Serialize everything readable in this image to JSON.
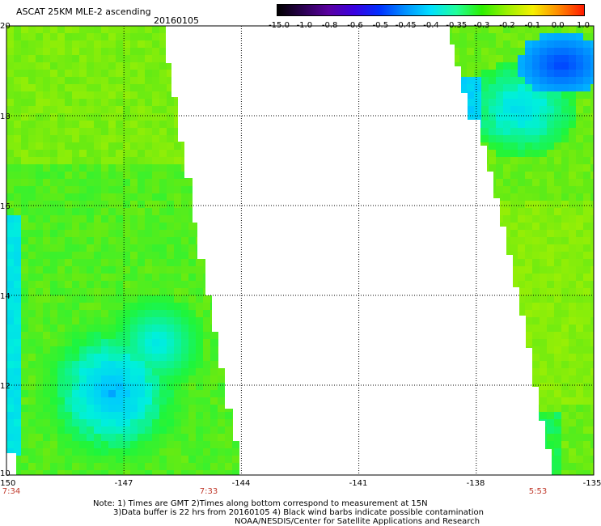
{
  "title": "ASCAT 25KM MLE-2 ascending",
  "date": "20160105",
  "colorbar": {
    "labels": [
      "-15.0",
      "-1.0",
      "-0.8",
      "-0.6",
      "-0.5",
      "-0.45",
      "-0.4",
      "-0.35",
      "-0.3",
      "-0.2",
      "-0.1",
      "0.0",
      "1.0"
    ],
    "colors": [
      "#000000",
      "#2a0050",
      "#5a00a0",
      "#3a00e0",
      "#0030ff",
      "#0090ff",
      "#00e0ff",
      "#20ff9a",
      "#2cef00",
      "#9cf000",
      "#f6f000",
      "#ff8a00",
      "#ff1a00"
    ]
  },
  "map": {
    "lat_labels": [
      "20",
      "18",
      "16",
      "14",
      "12",
      "10"
    ],
    "lon_labels": [
      "-150",
      "-147",
      "-144",
      "-141",
      "-138",
      "-135"
    ],
    "time_labels": [
      "7:34",
      "7:33",
      "5:53"
    ],
    "grid_lats": [
      18,
      16,
      14,
      12
    ],
    "grid_lons": [
      -147,
      -144,
      -141,
      -138
    ],
    "extent": {
      "lon_min": -150,
      "lon_max": -135,
      "lat_min": 10,
      "lat_max": 20
    }
  },
  "notes": [
    "Note: 1) Times are GMT 2)Times along bottom correspond to measurement at 15N",
    "3)Data buffer is 22 hrs from 20160105 4) Black wind barbs indicate possible contamination",
    "NOAA/NESDIS/Center for Satellite Applications and Research"
  ],
  "accent_colors": {
    "time_label": "#c0392b"
  }
}
